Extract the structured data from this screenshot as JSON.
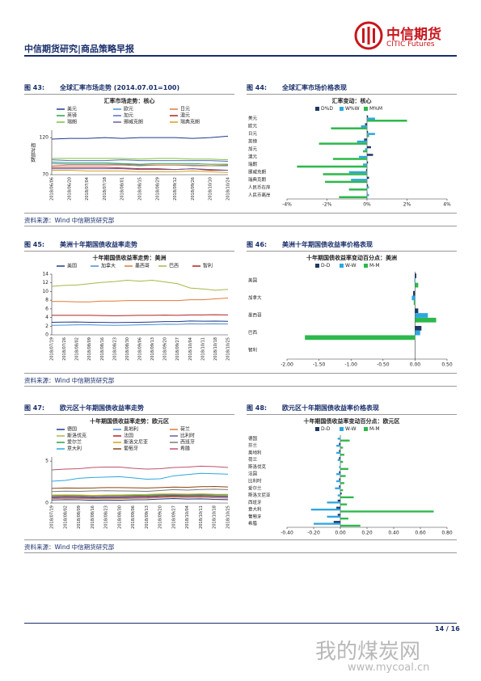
{
  "header": {
    "title": "中信期货研究|商品策略早报",
    "logo_cn": "中信期货",
    "logo_en": "CITIC Futures"
  },
  "figures": [
    {
      "number": "图 43:",
      "caption": "全球汇率市场走势 (2014.07.01=100)"
    },
    {
      "number": "图 44:",
      "caption": "全球汇率市场价格表现"
    },
    {
      "number": "图 45:",
      "caption": "美洲十年期国债收益率走势"
    },
    {
      "number": "图 46:",
      "caption": "美洲十年期国债收益率价格表现"
    },
    {
      "number": "图 47:",
      "caption": "欧元区十年期国债收益率走势"
    },
    {
      "number": "图 48:",
      "caption": "欧元区十年期国债收益率价格表现"
    }
  ],
  "sources": [
    "资料来源：Wind  中信期货研究部",
    "资料来源：Wind  中信期货研究部",
    "资料来源：Wind  中信期货研究部"
  ],
  "chart_data": [
    {
      "type": "line",
      "title": "汇率市场走势：核心",
      "y_label": "相对指数",
      "x": [
        "2018/06/06",
        "2018/06/20",
        "2018/07/04",
        "2018/07/18",
        "2018/08/01",
        "2018/08/15",
        "2018/08/29",
        "2018/09/12",
        "2018/09/26",
        "2018/10/10",
        "2018/10/24"
      ],
      "ylim": [
        70,
        130
      ],
      "yticks": [
        70,
        120
      ],
      "series": [
        {
          "name": "美元",
          "color": "#1f3a8a",
          "values": [
            118,
            119,
            119,
            120,
            119,
            120,
            120,
            120,
            119,
            120,
            122
          ]
        },
        {
          "name": "欧元",
          "color": "#4a8fd4",
          "values": [
            85,
            84,
            84,
            84,
            84,
            83,
            83,
            83,
            83,
            82,
            82
          ]
        },
        {
          "name": "日元",
          "color": "#e07b39",
          "values": [
            82,
            83,
            83,
            83,
            83,
            82,
            83,
            83,
            82,
            82,
            83
          ]
        },
        {
          "name": "英镑",
          "color": "#27a34a",
          "values": [
            87,
            86,
            86,
            86,
            85,
            84,
            85,
            85,
            85,
            84,
            84
          ]
        },
        {
          "name": "加元",
          "color": "#5b6ec4",
          "values": [
            90,
            89,
            89,
            89,
            90,
            89,
            89,
            89,
            89,
            89,
            88
          ]
        },
        {
          "name": "澳元",
          "color": "#b22222",
          "values": [
            80,
            80,
            80,
            80,
            79,
            78,
            78,
            77,
            78,
            76,
            76
          ]
        },
        {
          "name": "瑞朗",
          "color": "#7fbf3f",
          "values": [
            92,
            92,
            92,
            92,
            92,
            91,
            92,
            92,
            91,
            91,
            90
          ]
        },
        {
          "name": "挪威克朗",
          "color": "#6b5ca5",
          "values": [
            78,
            78,
            78,
            78,
            78,
            77,
            77,
            77,
            78,
            77,
            76
          ]
        },
        {
          "name": "瑞典克朗",
          "color": "#d4a017",
          "values": [
            76,
            76,
            75,
            75,
            75,
            74,
            74,
            74,
            75,
            74,
            73
          ]
        }
      ]
    },
    {
      "type": "hbar",
      "title": "汇率变动：核心",
      "categories": [
        "美元",
        "欧元",
        "日元",
        "英镑",
        "加元",
        "澳元",
        "瑞朗",
        "挪威克朗",
        "瑞典克朗",
        "人民币在岸",
        "人民币离岸"
      ],
      "xlim": [
        -4,
        4
      ],
      "xticks": [
        {
          "value": -4,
          "label": "-4%"
        },
        {
          "value": -2,
          "label": "-2%"
        },
        {
          "value": 0,
          "label": "0%"
        },
        {
          "value": 2,
          "label": "2%"
        },
        {
          "value": 4,
          "label": "4%"
        }
      ],
      "series": [
        {
          "name": "D%D",
          "color": "#1f3864",
          "values": [
            0.05,
            -0.1,
            0.05,
            -0.15,
            0.2,
            0.3,
            0.05,
            -0.05,
            0.1,
            0.05,
            0.02
          ]
        },
        {
          "name": "W%W",
          "color": "#2ea7e0",
          "values": [
            0.4,
            -0.3,
            0.4,
            -0.5,
            -0.1,
            -0.4,
            -0.2,
            -0.9,
            -0.8,
            0.1,
            0.1
          ]
        },
        {
          "name": "M%M",
          "color": "#2db84b",
          "values": [
            2.0,
            -1.8,
            0.1,
            -2.4,
            -0.2,
            -1.7,
            -3.5,
            -2.2,
            -2.1,
            -0.9,
            -1.4
          ]
        }
      ]
    },
    {
      "type": "line",
      "title": "十年期国债收益率走势：美洲",
      "x": [
        "2018/07/19",
        "2018/07/26",
        "2018/08/02",
        "2018/08/09",
        "2018/08/16",
        "2018/08/23",
        "2018/08/30",
        "2018/09/06",
        "2018/09/13",
        "2018/09/20",
        "2018/09/27",
        "2018/10/04",
        "2018/10/11",
        "2018/10/18",
        "2018/10/25"
      ],
      "ylim": [
        0,
        14
      ],
      "yticks": [
        0,
        2,
        4,
        6,
        8,
        10,
        12,
        14
      ],
      "series": [
        {
          "name": "美国",
          "color": "#1f3a8a",
          "values": [
            2.9,
            2.95,
            2.97,
            2.9,
            2.87,
            2.82,
            2.86,
            2.9,
            2.97,
            3.06,
            3.06,
            3.19,
            3.15,
            3.17,
            3.12
          ]
        },
        {
          "name": "加拿大",
          "color": "#4a8fd4",
          "values": [
            2.2,
            2.25,
            2.3,
            2.3,
            2.25,
            2.2,
            2.25,
            2.3,
            2.35,
            2.45,
            2.42,
            2.55,
            2.5,
            2.55,
            2.5
          ]
        },
        {
          "name": "墨西哥",
          "color": "#e07b39",
          "values": [
            7.7,
            7.7,
            7.6,
            7.6,
            7.8,
            7.8,
            7.9,
            7.9,
            7.9,
            7.9,
            7.9,
            8.1,
            8.1,
            8.3,
            8.5
          ]
        },
        {
          "name": "巴西",
          "color": "#a5b84a",
          "values": [
            11.2,
            11.4,
            11.5,
            11.8,
            12.1,
            12.3,
            12.6,
            12.4,
            12.6,
            12.2,
            11.8,
            10.8,
            10.6,
            10.3,
            10.5
          ]
        },
        {
          "name": "智利",
          "color": "#b22222",
          "values": [
            4.5,
            4.5,
            4.5,
            4.5,
            4.45,
            4.4,
            4.45,
            4.5,
            4.5,
            4.55,
            4.5,
            4.6,
            4.6,
            4.65,
            4.6
          ]
        }
      ]
    },
    {
      "type": "hbar",
      "title": "十年期国债收益率变动百分点：美洲",
      "categories": [
        "美国",
        "加拿大",
        "墨西哥",
        "巴西",
        "智利"
      ],
      "xlim": [
        -2,
        0.5
      ],
      "xticks": [
        {
          "value": -2,
          "label": "-2.00"
        },
        {
          "value": -1.5,
          "label": "-1.50"
        },
        {
          "value": -1,
          "label": "-1.00"
        },
        {
          "value": -0.5,
          "label": "-0.50"
        },
        {
          "value": 0,
          "label": "0.00"
        },
        {
          "value": 0.5,
          "label": "0.50"
        }
      ],
      "series": [
        {
          "name": "D-D",
          "color": "#1f3864",
          "values": [
            0.02,
            -0.03,
            0.05,
            0.1,
            0.0
          ]
        },
        {
          "name": "W-W",
          "color": "#2ea7e0",
          "values": [
            -0.01,
            -0.05,
            0.2,
            0.08,
            0.0
          ]
        },
        {
          "name": "M-M",
          "color": "#2db84b",
          "values": [
            0.05,
            -0.02,
            0.33,
            -1.72,
            0.0
          ]
        }
      ]
    },
    {
      "type": "line",
      "title": "十年期国债收益率走势：欧元区",
      "x": [
        "2018/07/19",
        "2018/08/02",
        "2018/08/09",
        "2018/08/16",
        "2018/08/23",
        "2018/08/30",
        "2018/09/06",
        "2018/09/13",
        "2018/09/20",
        "2018/09/27",
        "2018/10/04",
        "2018/10/11",
        "2018/10/18",
        "2018/10/25"
      ],
      "ylim": [
        0,
        5.5
      ],
      "yticks": [
        0,
        5
      ],
      "series": [
        {
          "name": "德国",
          "color": "#1f3a8a",
          "values": [
            0.36,
            0.4,
            0.38,
            0.33,
            0.35,
            0.34,
            0.38,
            0.4,
            0.47,
            0.53,
            0.47,
            0.5,
            0.43,
            0.4
          ]
        },
        {
          "name": "奥地利",
          "color": "#4a8fd4",
          "values": [
            0.6,
            0.65,
            0.63,
            0.58,
            0.6,
            0.6,
            0.64,
            0.66,
            0.75,
            0.8,
            0.76,
            0.8,
            0.74,
            0.7
          ]
        },
        {
          "name": "荷兰",
          "color": "#e07b39",
          "values": [
            0.52,
            0.56,
            0.54,
            0.49,
            0.51,
            0.51,
            0.55,
            0.57,
            0.64,
            0.7,
            0.65,
            0.68,
            0.62,
            0.58
          ]
        },
        {
          "name": "斯洛伐克",
          "color": "#a5b84a",
          "values": [
            0.9,
            0.92,
            0.9,
            0.86,
            0.88,
            0.88,
            0.9,
            0.92,
            0.97,
            1.0,
            0.98,
            1.0,
            0.96,
            0.95
          ]
        },
        {
          "name": "法国",
          "color": "#b22222",
          "values": [
            0.68,
            0.72,
            0.7,
            0.65,
            0.68,
            0.68,
            0.72,
            0.74,
            0.8,
            0.86,
            0.82,
            0.85,
            0.8,
            0.78
          ]
        },
        {
          "name": "比利时",
          "color": "#6b5ca5",
          "values": [
            0.75,
            0.8,
            0.78,
            0.72,
            0.75,
            0.75,
            0.8,
            0.82,
            0.88,
            0.93,
            0.88,
            0.9,
            0.85,
            0.82
          ]
        },
        {
          "name": "爱尔兰",
          "color": "#27a34a",
          "values": [
            0.88,
            0.92,
            0.9,
            0.85,
            0.88,
            0.88,
            0.92,
            0.94,
            1.0,
            1.05,
            1.0,
            1.02,
            0.98,
            0.95
          ]
        },
        {
          "name": "斯洛文尼亚",
          "color": "#d4a017",
          "values": [
            0.95,
            0.98,
            0.96,
            0.92,
            0.95,
            0.96,
            1.0,
            1.02,
            1.08,
            1.1,
            1.06,
            1.1,
            1.05,
            1.04
          ]
        },
        {
          "name": "西班牙",
          "color": "#7a7a7a",
          "values": [
            1.38,
            1.42,
            1.4,
            1.45,
            1.47,
            1.45,
            1.43,
            1.4,
            1.5,
            1.6,
            1.55,
            1.62,
            1.65,
            1.6
          ]
        },
        {
          "name": "意大利",
          "color": "#2ea7e0",
          "values": [
            2.6,
            2.7,
            2.95,
            3.05,
            3.1,
            3.15,
            3.0,
            2.85,
            2.9,
            3.25,
            3.4,
            3.55,
            3.5,
            3.45
          ]
        },
        {
          "name": "葡萄牙",
          "color": "#8b4513",
          "values": [
            1.75,
            1.8,
            1.78,
            1.8,
            1.85,
            1.85,
            1.82,
            1.8,
            1.85,
            1.9,
            1.88,
            1.95,
            1.98,
            1.92
          ]
        },
        {
          "name": "希腊",
          "color": "#c0506d",
          "values": [
            3.95,
            4.05,
            4.1,
            4.25,
            4.3,
            4.3,
            4.15,
            4.05,
            4.1,
            4.25,
            4.3,
            4.4,
            4.35,
            4.25
          ]
        }
      ]
    },
    {
      "type": "hbar",
      "title": "十年期国债收益率变动百分点：欧元区",
      "categories": [
        "德国",
        "芬兰",
        "奥地利",
        "荷兰",
        "斯洛伐克",
        "法国",
        "比利时",
        "爱尔兰",
        "斯洛文尼亚",
        "西班牙",
        "意大利",
        "葡萄牙",
        "希腊"
      ],
      "xlim": [
        -0.4,
        0.8
      ],
      "xticks": [
        {
          "value": -0.4,
          "label": "-0.40"
        },
        {
          "value": -0.2,
          "label": "-0.20"
        },
        {
          "value": 0,
          "label": "0.00"
        },
        {
          "value": 0.2,
          "label": "0.20"
        },
        {
          "value": 0.4,
          "label": "0.40"
        },
        {
          "value": 0.6,
          "label": "0.60"
        },
        {
          "value": 0.8,
          "label": "0.80"
        }
      ],
      "series": [
        {
          "name": "D-D",
          "color": "#1f3864",
          "values": [
            0.0,
            -0.01,
            -0.01,
            -0.01,
            0.0,
            -0.01,
            -0.01,
            -0.01,
            0.01,
            -0.02,
            -0.03,
            -0.02,
            -0.05
          ]
        },
        {
          "name": "W-W",
          "color": "#2ea7e0",
          "values": [
            -0.02,
            -0.03,
            -0.03,
            -0.02,
            -0.01,
            -0.03,
            -0.03,
            -0.04,
            -0.02,
            -0.1,
            -0.22,
            -0.1,
            -0.2
          ]
        },
        {
          "name": "M-M",
          "color": "#2db84b",
          "values": [
            0.07,
            0.02,
            0.03,
            0.02,
            0.06,
            0.04,
            0.03,
            0.02,
            0.1,
            0.05,
            0.7,
            0.06,
            0.15
          ]
        }
      ]
    }
  ],
  "footer": {
    "page": "14 / 16"
  },
  "watermark": {
    "name": "我的煤炭网",
    "url": "www.mycoal.cn"
  }
}
